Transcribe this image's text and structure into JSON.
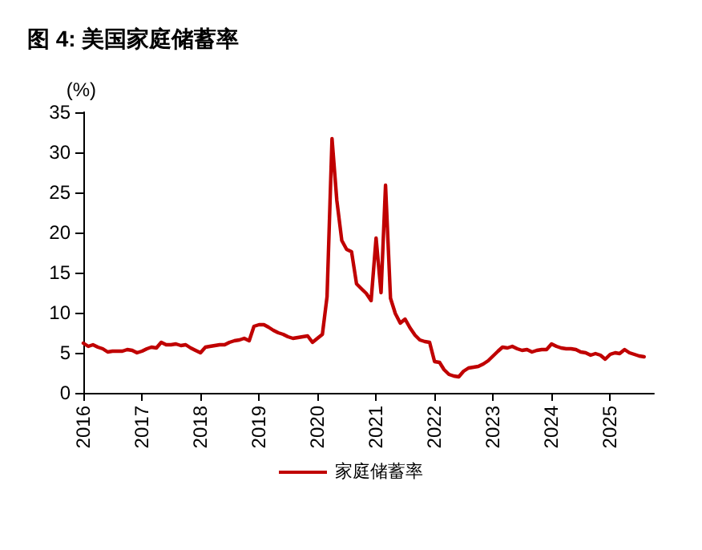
{
  "chart_data": {
    "type": "line",
    "title": "图 4: 美国家庭储蓄率",
    "ylabel": "(%)",
    "x": [
      "2016-01",
      "2016-02",
      "2016-03",
      "2016-04",
      "2016-05",
      "2016-06",
      "2016-07",
      "2016-08",
      "2016-09",
      "2016-10",
      "2016-11",
      "2016-12",
      "2017-01",
      "2017-02",
      "2017-03",
      "2017-04",
      "2017-05",
      "2017-06",
      "2017-07",
      "2017-08",
      "2017-09",
      "2017-10",
      "2017-11",
      "2017-12",
      "2018-01",
      "2018-02",
      "2018-03",
      "2018-04",
      "2018-05",
      "2018-06",
      "2018-07",
      "2018-08",
      "2018-09",
      "2018-10",
      "2018-11",
      "2018-12",
      "2019-01",
      "2019-02",
      "2019-03",
      "2019-04",
      "2019-05",
      "2019-06",
      "2019-07",
      "2019-08",
      "2019-09",
      "2019-10",
      "2019-11",
      "2019-12",
      "2020-01",
      "2020-02",
      "2020-03",
      "2020-04",
      "2020-05",
      "2020-06",
      "2020-07",
      "2020-08",
      "2020-09",
      "2020-10",
      "2020-11",
      "2020-12",
      "2021-01",
      "2021-02",
      "2021-03",
      "2021-04",
      "2021-05",
      "2021-06",
      "2021-07",
      "2021-08",
      "2021-09",
      "2021-10",
      "2021-11",
      "2021-12",
      "2022-01",
      "2022-02",
      "2022-03",
      "2022-04",
      "2022-05",
      "2022-06",
      "2022-07",
      "2022-08",
      "2022-09",
      "2022-10",
      "2022-11",
      "2022-12",
      "2023-01",
      "2023-02",
      "2023-03",
      "2023-04",
      "2023-05",
      "2023-06",
      "2023-07",
      "2023-08",
      "2023-09",
      "2023-10",
      "2023-11",
      "2023-12",
      "2024-01",
      "2024-02",
      "2024-03",
      "2024-04",
      "2024-05",
      "2024-06",
      "2024-07",
      "2024-08",
      "2024-09",
      "2024-10",
      "2024-11",
      "2024-12",
      "2025-01",
      "2025-02",
      "2025-03",
      "2025-04",
      "2025-05",
      "2025-06",
      "2025-07",
      "2025-08"
    ],
    "series": [
      {
        "name": "家庭储蓄率",
        "color": "#c00000",
        "values": [
          6.2,
          5.8,
          6.0,
          5.7,
          5.5,
          5.1,
          5.2,
          5.2,
          5.2,
          5.4,
          5.3,
          5.0,
          5.2,
          5.5,
          5.7,
          5.6,
          6.3,
          6.0,
          6.0,
          6.1,
          5.9,
          6.0,
          5.6,
          5.3,
          5.0,
          5.7,
          5.8,
          5.9,
          6.0,
          6.0,
          6.3,
          6.5,
          6.6,
          6.8,
          6.5,
          8.3,
          8.5,
          8.5,
          8.2,
          7.8,
          7.5,
          7.3,
          7.0,
          6.8,
          6.9,
          7.0,
          7.1,
          6.3,
          6.8,
          7.3,
          12.0,
          31.7,
          24.0,
          19.0,
          17.9,
          17.6,
          13.6,
          13.0,
          12.4,
          11.5,
          19.3,
          12.5,
          25.9,
          11.8,
          9.9,
          8.7,
          9.2,
          8.1,
          7.2,
          6.6,
          6.4,
          6.3,
          3.9,
          3.8,
          2.9,
          2.3,
          2.1,
          2.0,
          2.7,
          3.1,
          3.2,
          3.3,
          3.6,
          4.0,
          4.6,
          5.2,
          5.7,
          5.6,
          5.8,
          5.5,
          5.3,
          5.4,
          5.1,
          5.3,
          5.4,
          5.4,
          6.1,
          5.8,
          5.6,
          5.5,
          5.5,
          5.4,
          5.1,
          5.0,
          4.7,
          4.9,
          4.7,
          4.2,
          4.8,
          5.0,
          4.9,
          5.4,
          5.0,
          4.8,
          4.6,
          4.5
        ]
      }
    ],
    "xlim": [
      "2016-01",
      "2025-10"
    ],
    "xticks": [
      "2016",
      "2017",
      "2018",
      "2019",
      "2020",
      "2021",
      "2022",
      "2023",
      "2024",
      "2025"
    ],
    "ylim": [
      0,
      35
    ],
    "yticks": [
      0,
      5,
      10,
      15,
      20,
      25,
      30,
      35
    ],
    "grid": false,
    "legend": "bottom",
    "marker": "none",
    "line_style": "solid"
  }
}
